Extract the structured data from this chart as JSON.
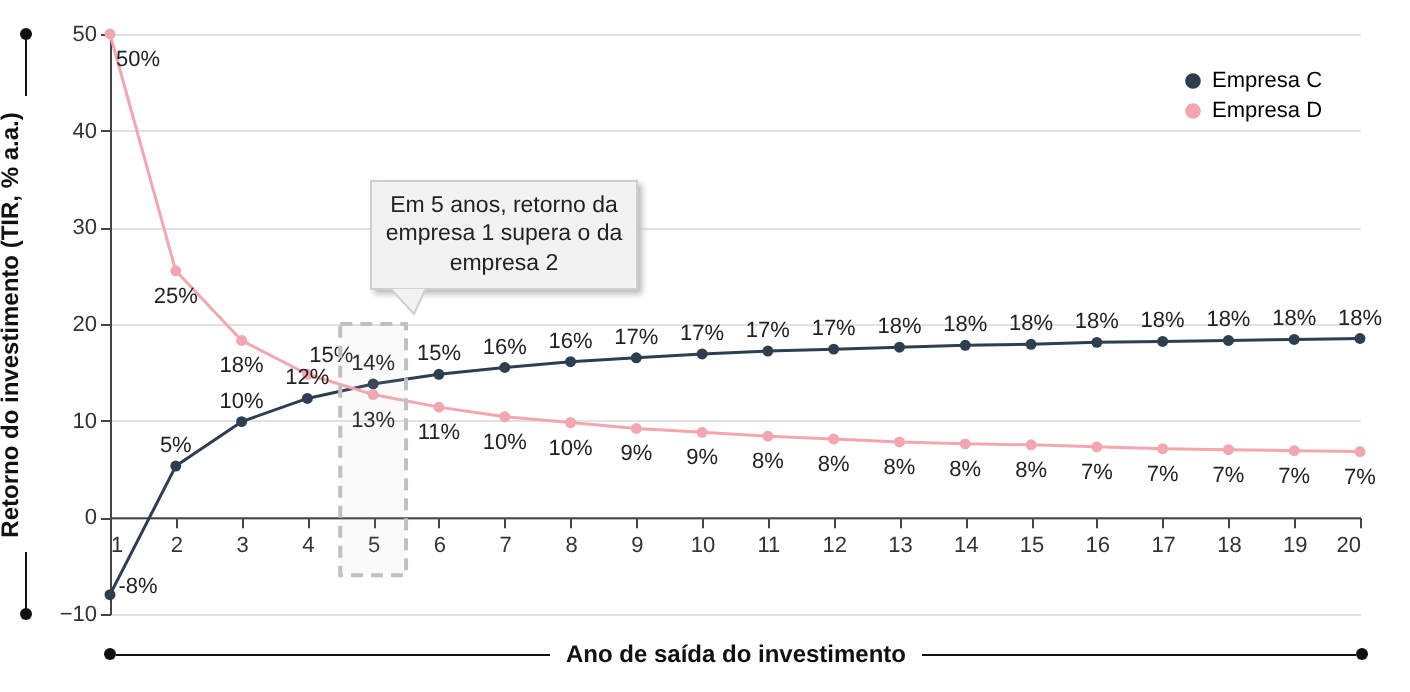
{
  "chart_data": {
    "type": "line",
    "xlabel": "Ano de saída do investimento",
    "ylabel": "Retorno do investimento (TIR, % a.a.)",
    "x": [
      1,
      2,
      3,
      4,
      5,
      6,
      7,
      8,
      9,
      10,
      11,
      12,
      13,
      14,
      15,
      16,
      17,
      18,
      19,
      20
    ],
    "series": [
      {
        "name": "Empresa C",
        "color": "#2d3e50",
        "values": [
          -8,
          5.3,
          9.9,
          12.3,
          13.8,
          14.8,
          15.5,
          16.1,
          16.5,
          16.9,
          17.2,
          17.4,
          17.6,
          17.8,
          17.9,
          18.1,
          18.2,
          18.3,
          18.4,
          18.5
        ],
        "value_labels": [
          "-8%",
          "5%",
          "10%",
          "12%",
          "14%",
          "15%",
          "16%",
          "16%",
          "17%",
          "17%",
          "17%",
          "17%",
          "18%",
          "18%",
          "18%",
          "18%",
          "18%",
          "18%",
          "18%",
          "18%"
        ]
      },
      {
        "name": "Empresa D",
        "color": "#f4a6b0",
        "values": [
          50,
          25.5,
          18.3,
          14.8,
          12.7,
          11.4,
          10.4,
          9.8,
          9.2,
          8.8,
          8.4,
          8.1,
          7.8,
          7.6,
          7.5,
          7.3,
          7.1,
          7.0,
          6.9,
          6.8
        ],
        "value_labels": [
          "50%",
          "25%",
          "18%",
          "15%",
          "13%",
          "11%",
          "10%",
          "10%",
          "9%",
          "9%",
          "8%",
          "8%",
          "8%",
          "8%",
          "8%",
          "7%",
          "7%",
          "7%",
          "7%",
          "7%"
        ]
      }
    ],
    "xlim": [
      1,
      20
    ],
    "xticks": [
      1,
      2,
      3,
      4,
      5,
      6,
      7,
      8,
      9,
      10,
      11,
      12,
      13,
      14,
      15,
      16,
      17,
      18,
      19,
      20
    ],
    "ylim": [
      -10,
      50
    ],
    "yticks": [
      -10,
      0,
      10,
      20,
      30,
      40,
      50
    ],
    "bands": [
      {
        "axis": "x",
        "from": 4.5,
        "to": 5.5,
        "color": "#c0c0c0"
      }
    ],
    "annotations": [
      "Em 5 anos, retorno da empresa 1 supera o da empresa 2"
    ],
    "grid": "y",
    "legend": "top right",
    "marker": "circle",
    "line_style": "solid"
  }
}
